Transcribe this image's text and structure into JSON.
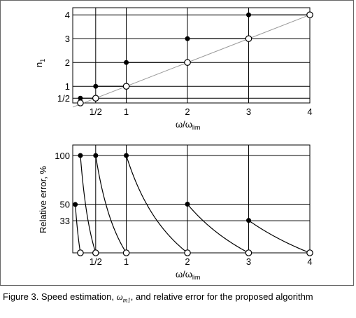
{
  "chart_data": [
    {
      "type": "line",
      "panel": "top",
      "xlabel": "ω/ω",
      "xlabel_sub": "lim",
      "ylabel": "n",
      "ylabel_sub": "1",
      "xlim": [
        0.125,
        4
      ],
      "ylim": [
        0.3,
        4.3
      ],
      "xticks": [
        0.5,
        1,
        2,
        3,
        4
      ],
      "xtick_labels": [
        "1/2",
        "1",
        "2",
        "3",
        "4"
      ],
      "yticks": [
        0.5,
        1,
        2,
        3,
        4
      ],
      "ytick_labels": [
        "1/2",
        "1",
        "2",
        "3",
        "4"
      ],
      "grid": true,
      "reference_line": {
        "x": [
          0.125,
          4
        ],
        "y": [
          0.125,
          4
        ],
        "color": "#999999"
      },
      "steps": [
        {
          "filled": [
            0.25,
            0.5
          ],
          "open": [
            0.5,
            0.5
          ]
        },
        {
          "filled": [
            0.5,
            1
          ],
          "open": [
            1,
            1
          ]
        },
        {
          "filled": [
            1,
            2
          ],
          "open": [
            2,
            2
          ]
        },
        {
          "filled": [
            2,
            3
          ],
          "open": [
            3,
            3
          ]
        },
        {
          "filled": [
            3,
            4
          ],
          "open": [
            4,
            4
          ]
        }
      ],
      "extra_open_points": [
        [
          0.25,
          0.3
        ]
      ]
    },
    {
      "type": "line",
      "panel": "bottom",
      "xlabel": "ω/ω",
      "xlabel_sub": "lim",
      "ylabel": "Relative error, %",
      "xlim": [
        0.125,
        4
      ],
      "ylim": [
        0,
        100
      ],
      "xticks": [
        0.5,
        1,
        2,
        3,
        4
      ],
      "xtick_labels": [
        "1/2",
        "1",
        "2",
        "3",
        "4"
      ],
      "yticks": [
        33,
        50,
        100
      ],
      "ytick_labels": [
        "33",
        "50",
        "100"
      ],
      "grid": true,
      "segments": [
        {
          "x_start": 0.167,
          "n": 0.25,
          "x_end": 0.25
        },
        {
          "x_start": 0.25,
          "n": 0.5,
          "x_end": 0.5
        },
        {
          "x_start": 0.5,
          "n": 1,
          "x_end": 1
        },
        {
          "x_start": 1,
          "n": 2,
          "x_end": 2
        },
        {
          "x_start": 2,
          "n": 3,
          "x_end": 3
        },
        {
          "x_start": 3,
          "n": 4,
          "x_end": 4
        }
      ]
    }
  ],
  "caption": {
    "prefix": "Figure 3. Speed estimation, ",
    "symbol": "ω",
    "symbol_sub": "m1",
    "suffix": ", and relative error for the proposed algorithm"
  },
  "colors": {
    "line": "#000000",
    "grid": "#000000",
    "reference": "#999999",
    "border": "#666666"
  }
}
